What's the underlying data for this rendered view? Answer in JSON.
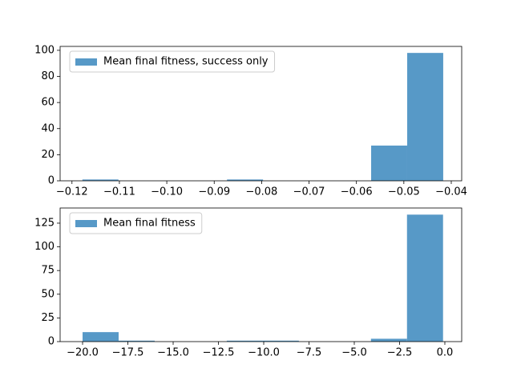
{
  "chart_data": [
    {
      "type": "histogram",
      "bins": [
        -0.1178,
        -0.1102,
        -0.1026,
        -0.095,
        -0.0873,
        -0.0797,
        -0.0721,
        -0.0645,
        -0.0569,
        -0.0493,
        -0.0417
      ],
      "series": [
        {
          "name": "Mean final fitness, success only",
          "color": "#5799c7",
          "values": [
            1,
            0,
            0,
            0,
            1,
            0,
            0,
            0,
            27,
            98
          ]
        }
      ],
      "xlim": [
        -0.1225,
        -0.0378
      ],
      "ylim": [
        0,
        103
      ],
      "xticks": [
        {
          "value": -0.12,
          "label": "−0.12"
        },
        {
          "value": -0.11,
          "label": "−0.11"
        },
        {
          "value": -0.1,
          "label": "−0.10"
        },
        {
          "value": -0.09,
          "label": "−0.09"
        },
        {
          "value": -0.08,
          "label": "−0.08"
        },
        {
          "value": -0.07,
          "label": "−0.07"
        },
        {
          "value": -0.06,
          "label": "−0.06"
        },
        {
          "value": -0.05,
          "label": "−0.05"
        },
        {
          "value": -0.04,
          "label": "−0.04"
        }
      ],
      "yticks": [
        0,
        20,
        40,
        60,
        80,
        100
      ],
      "legend": "upper left"
    },
    {
      "type": "histogram",
      "bins": [
        -20.0,
        -18.01,
        -16.02,
        -14.03,
        -12.04,
        -10.05,
        -8.06,
        -6.07,
        -4.08,
        -2.09,
        -0.1
      ],
      "series": [
        {
          "name": "Mean final fitness",
          "color": "#5799c7",
          "values": [
            10,
            1,
            0,
            0,
            1,
            1,
            0,
            0,
            3,
            134
          ]
        }
      ],
      "xlim": [
        -21.24,
        0.93
      ],
      "ylim": [
        0,
        141
      ],
      "xticks": [
        {
          "value": -20,
          "label": "−20.0"
        },
        {
          "value": -17.5,
          "label": "−17.5"
        },
        {
          "value": -15,
          "label": "−15.0"
        },
        {
          "value": -12.5,
          "label": "−12.5"
        },
        {
          "value": -10,
          "label": "−10.0"
        },
        {
          "value": -7.5,
          "label": "−7.5"
        },
        {
          "value": -5,
          "label": "−5.0"
        },
        {
          "value": -2.5,
          "label": "−2.5"
        },
        {
          "value": 0,
          "label": "0.0"
        }
      ],
      "yticks": [
        0,
        25,
        50,
        75,
        100,
        125
      ],
      "legend": "upper left"
    }
  ]
}
